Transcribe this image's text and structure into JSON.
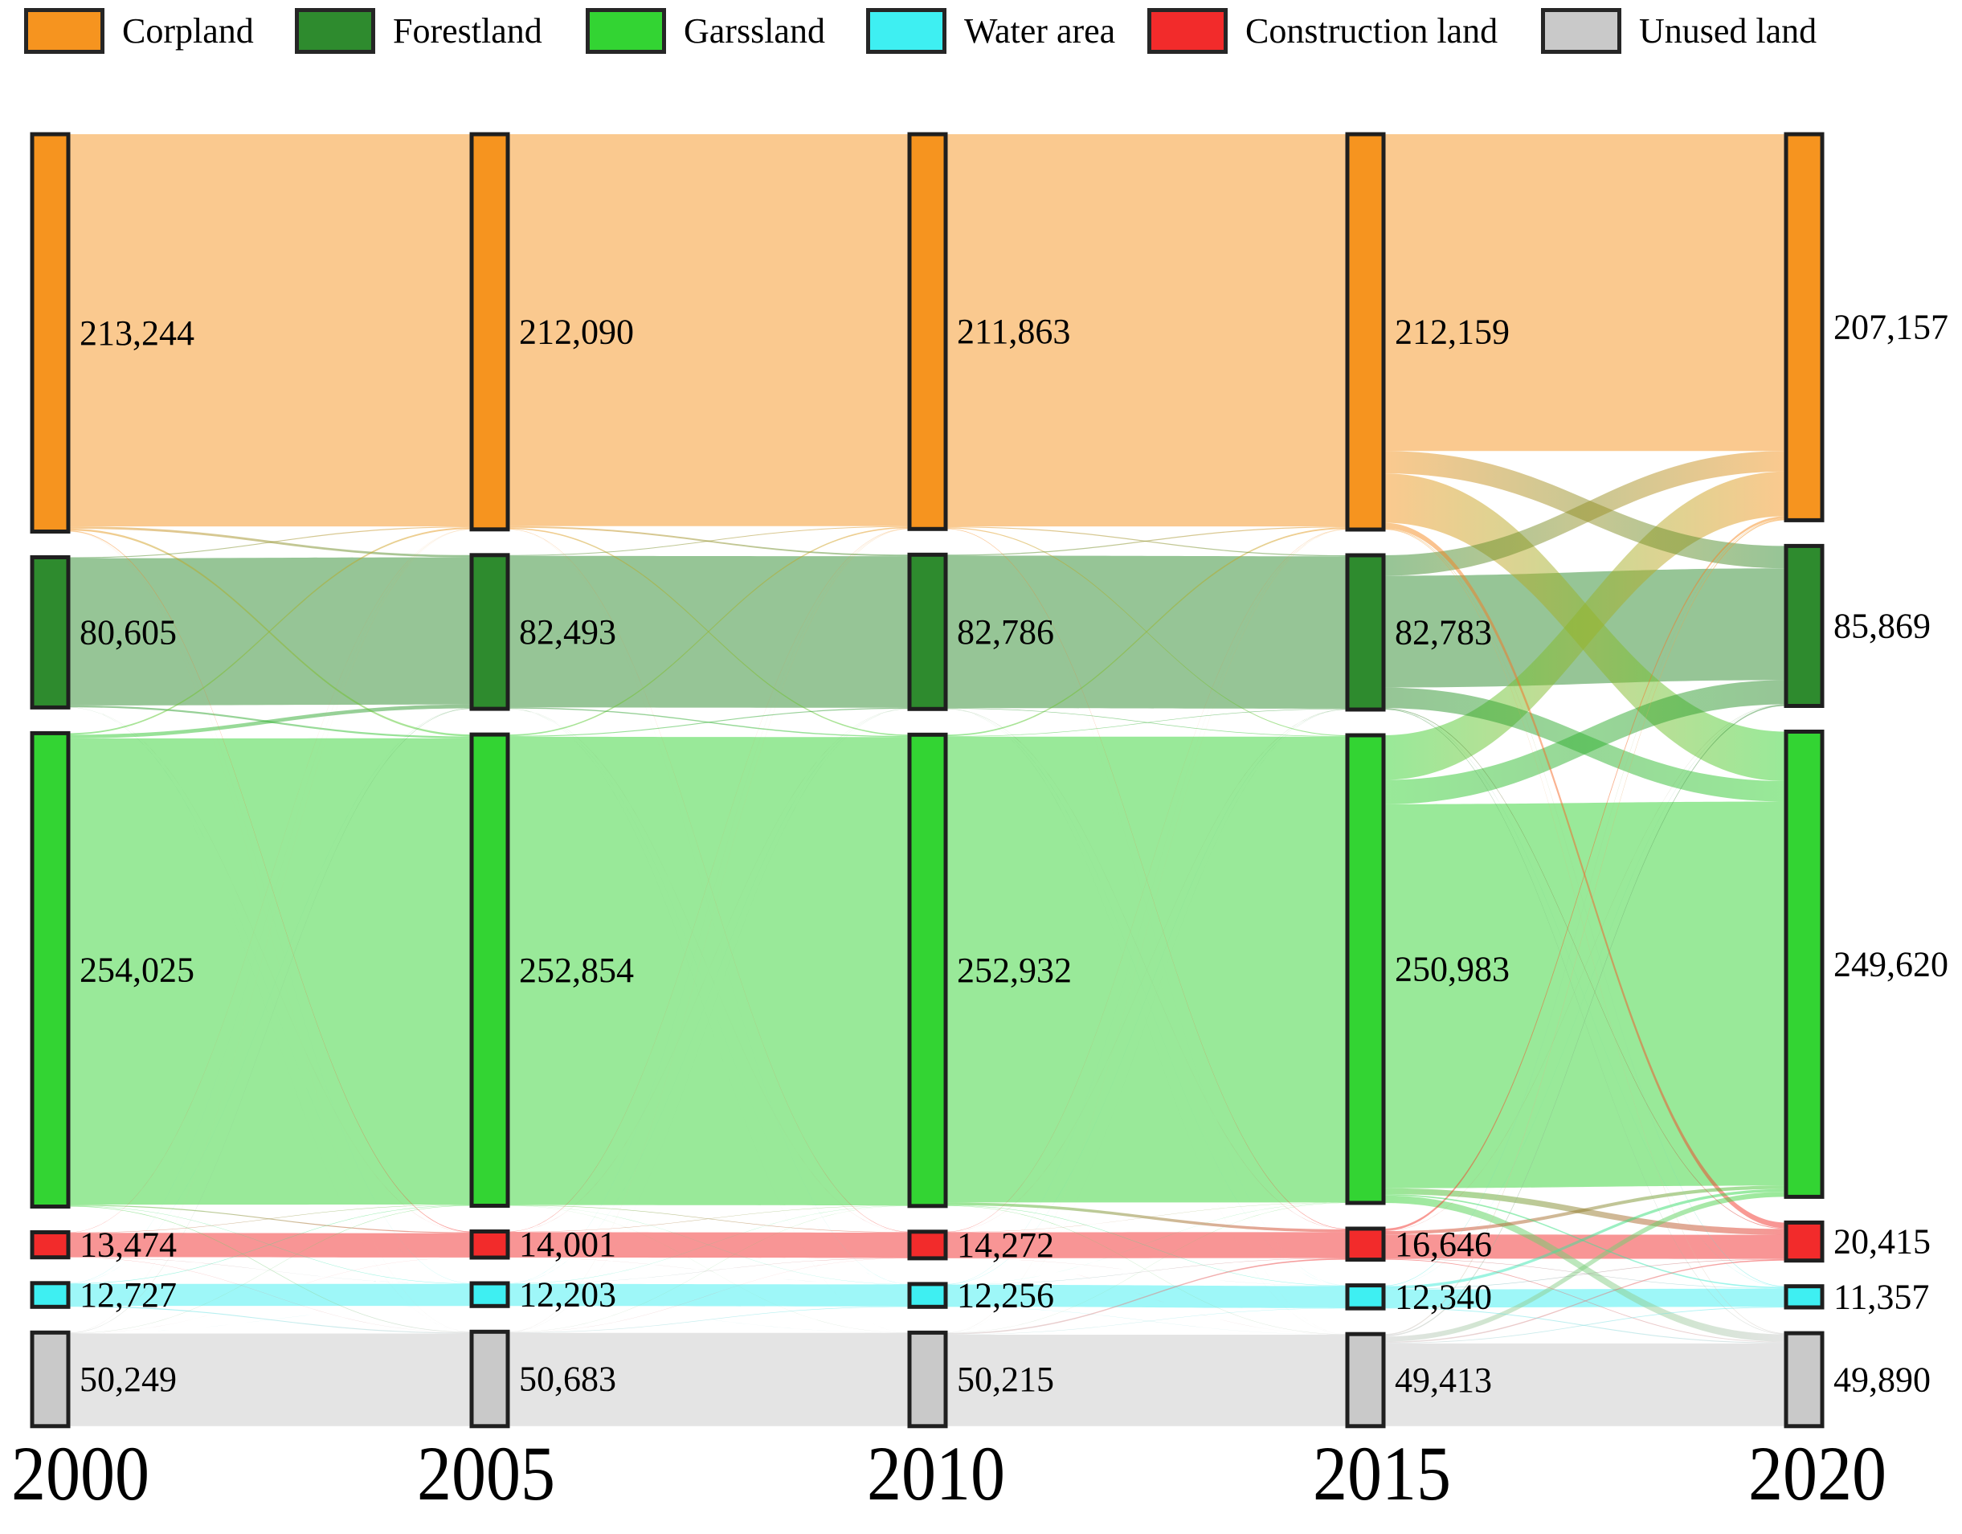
{
  "legend": {
    "items": [
      {
        "label": "Corpland",
        "color": "#F6941F"
      },
      {
        "label": "Forestland",
        "color": "#2E8B2E"
      },
      {
        "label": "Garssland",
        "color": "#33D433"
      },
      {
        "label": "Water area",
        "color": "#3EEFF2"
      },
      {
        "label": "Construction land",
        "color": "#F22B2B"
      },
      {
        "label": "Unused land",
        "color": "#C9C9C9"
      }
    ]
  },
  "chart_data": {
    "type": "sankey",
    "title": "",
    "years": [
      "2000",
      "2005",
      "2010",
      "2015",
      "2020"
    ],
    "categories": [
      {
        "name": "Corpland",
        "color": "#F6941F"
      },
      {
        "name": "Forestland",
        "color": "#2E8B2E"
      },
      {
        "name": "Garssland",
        "color": "#33D433"
      },
      {
        "name": "Construction land",
        "color": "#F22B2B"
      },
      {
        "name": "Water area",
        "color": "#3EEFF2"
      },
      {
        "name": "Unused land",
        "color": "#C9C9C9"
      }
    ],
    "node_values": [
      [
        213244,
        80605,
        254025,
        13474,
        12727,
        50249
      ],
      [
        212090,
        82493,
        252854,
        14001,
        12203,
        50683
      ],
      [
        211863,
        82786,
        252932,
        14272,
        12256,
        50215
      ],
      [
        212159,
        82783,
        250983,
        16646,
        12340,
        49413
      ],
      [
        207157,
        85869,
        249620,
        20415,
        11357,
        49890
      ]
    ],
    "node_labels": [
      [
        "213,244",
        "80,605",
        "254,025",
        "13,474",
        "12,727",
        "50,249"
      ],
      [
        "212,090",
        "82,493",
        "252,854",
        "14,001",
        "12,203",
        "50,683"
      ],
      [
        "211,863",
        "82,786",
        "252,932",
        "14,272",
        "12,256",
        "50,215"
      ],
      [
        "212,159",
        "82,783",
        "250,983",
        "16,646",
        "12,340",
        "49,413"
      ],
      [
        "207,157",
        "85,869",
        "249,620",
        "20,415",
        "11,357",
        "49,890"
      ]
    ],
    "flows_estimated": [
      [
        [
          210500,
          1200,
          1000,
          400,
          80,
          64
        ],
        [
          500,
          79000,
          1000,
          50,
          25,
          30
        ],
        [
          800,
          2000,
          250225,
          500,
          200,
          300
        ],
        [
          100,
          30,
          200,
          13000,
          60,
          84
        ],
        [
          90,
          63,
          229,
          31,
          11814,
          500
        ],
        [
          100,
          200,
          200,
          20,
          24,
          49705
        ]
      ],
      [
        [
          210363,
          800,
          700,
          150,
          50,
          27
        ],
        [
          400,
          81343,
          600,
          60,
          40,
          50
        ],
        [
          700,
          500,
          251254,
          250,
          100,
          50
        ],
        [
          150,
          43,
          178,
          13600,
          20,
          10
        ],
        [
          100,
          50,
          100,
          112,
          11791,
          50
        ],
        [
          150,
          50,
          100,
          100,
          255,
          50028
        ]
      ],
      [
        [
          210500,
          500,
          500,
          300,
          40,
          23
        ],
        [
          500,
          81800,
          300,
          100,
          50,
          36
        ],
        [
          800,
          300,
          249932,
          1500,
          200,
          200
        ],
        [
          150,
          50,
          100,
          13900,
          50,
          22
        ],
        [
          100,
          83,
          51,
          146,
          11826,
          50
        ],
        [
          109,
          50,
          100,
          700,
          174,
          49082
        ]
      ],
      [
        [
          170000,
          12000,
          26500,
          3000,
          300,
          359
        ],
        [
          11000,
          60000,
          11000,
          400,
          83,
          300
        ],
        [
          24000,
          13000,
          206099,
          3200,
          700,
          3984
        ],
        [
          1200,
          100,
          1800,
          12946,
          200,
          400
        ],
        [
          300,
          80,
          1500,
          260,
          9700,
          500
        ],
        [
          657,
          689,
          2721,
          609,
          374,
          44363
        ]
      ]
    ],
    "layout_hints": {
      "node_order_top_to_bottom": [
        "Corpland",
        "Forestland",
        "Garssland",
        "Construction land",
        "Water area",
        "Unused land"
      ],
      "legend_position": "top",
      "grid": false
    }
  }
}
